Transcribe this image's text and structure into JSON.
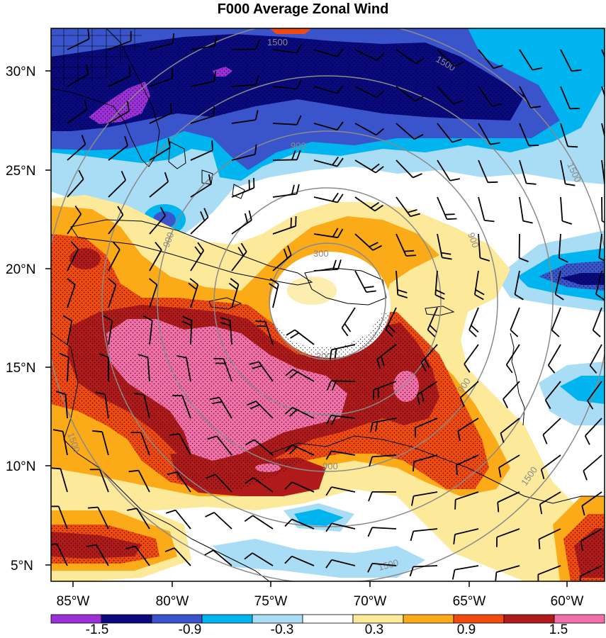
{
  "title": "F000 Average Zonal Wind",
  "map": {
    "lat_ticks": [
      "30°N",
      "25°N",
      "20°N",
      "15°N",
      "10°N",
      "5°N"
    ],
    "lon_ticks": [
      "85°W",
      "80°W",
      "75°W",
      "70°W",
      "65°W",
      "60°W"
    ],
    "range_ring_labels": [
      "300",
      "900",
      "1500"
    ],
    "range_ring_label_annotations": [
      "300",
      "300",
      "900",
      "900",
      "900",
      "900",
      "900",
      "1500",
      "1500",
      "1500",
      "1500",
      "1500",
      "1500"
    ]
  },
  "colorbar": {
    "tick_labels": [
      "-1.5",
      "-0.9",
      "-0.3",
      "0.3",
      "0.9",
      "1.5"
    ],
    "colors": [
      "#9b30d9",
      "#0a0a80",
      "#3a55cc",
      "#00b4f0",
      "#a9dcf5",
      "#ffffff",
      "#fde99a",
      "#fbaa18",
      "#f04a10",
      "#b01a1a",
      "#f36fa8"
    ]
  },
  "colors": {
    "ring": "#8a8a8a",
    "barb": "#000000",
    "coast": "#000000"
  }
}
